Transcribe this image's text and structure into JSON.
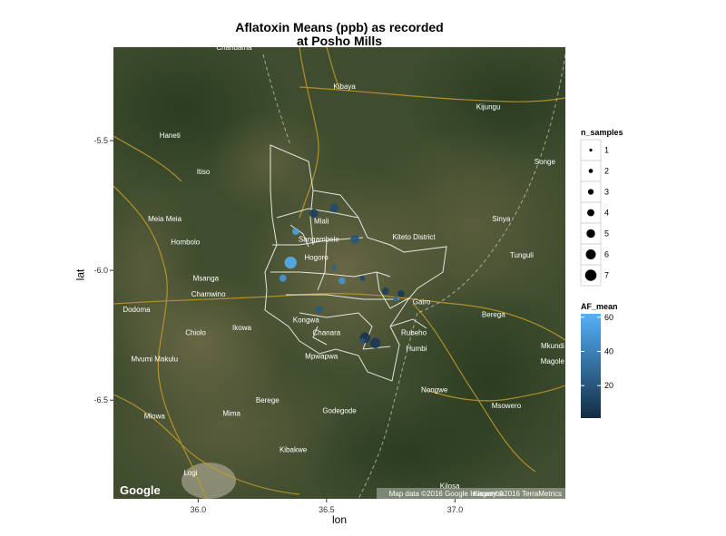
{
  "title_line1": "Aflatoxin Means (ppb) as recorded",
  "title_line2": "at Posho Mills",
  "xlabel": "lon",
  "ylabel": "lat",
  "x_ticks": [
    "36.0",
    "36.5",
    "37.0"
  ],
  "y_ticks": [
    "-5.5",
    "-6.0",
    "-6.5"
  ],
  "map_labels": [
    {
      "text": "Chandama",
      "lon": 36.14,
      "lat": -5.15
    },
    {
      "text": "Kibaya",
      "lon": 36.57,
      "lat": -5.3
    },
    {
      "text": "Kijungu",
      "lon": 37.13,
      "lat": -5.38
    },
    {
      "text": "Haneti",
      "lon": 35.89,
      "lat": -5.49
    },
    {
      "text": "Songe",
      "lon": 37.35,
      "lat": -5.59
    },
    {
      "text": "Itiso",
      "lon": 36.02,
      "lat": -5.63
    },
    {
      "text": "Meia Meia",
      "lon": 35.87,
      "lat": -5.81
    },
    {
      "text": "Sinya",
      "lon": 37.18,
      "lat": -5.81
    },
    {
      "text": "Mlali",
      "lon": 36.48,
      "lat": -5.82
    },
    {
      "text": "Kiteto District",
      "lon": 36.84,
      "lat": -5.88
    },
    {
      "text": "Hombolo",
      "lon": 35.95,
      "lat": -5.9
    },
    {
      "text": "Sangambele",
      "lon": 36.47,
      "lat": -5.89
    },
    {
      "text": "Tunguli",
      "lon": 37.26,
      "lat": -5.95
    },
    {
      "text": "Hogoro",
      "lon": 36.46,
      "lat": -5.96
    },
    {
      "text": "Msanga",
      "lon": 36.03,
      "lat": -6.04
    },
    {
      "text": "Chamwino",
      "lon": 36.04,
      "lat": -6.1
    },
    {
      "text": "Dodoma",
      "lon": 35.76,
      "lat": -6.16
    },
    {
      "text": "Gairo",
      "lon": 36.87,
      "lat": -6.13
    },
    {
      "text": "Berega",
      "lon": 37.15,
      "lat": -6.18
    },
    {
      "text": "Kongwa",
      "lon": 36.42,
      "lat": -6.2
    },
    {
      "text": "Ikowa",
      "lon": 36.17,
      "lat": -6.23
    },
    {
      "text": "Chiolo",
      "lon": 35.99,
      "lat": -6.25
    },
    {
      "text": "Chanara",
      "lon": 36.5,
      "lat": -6.25
    },
    {
      "text": "Rubeho",
      "lon": 36.84,
      "lat": -6.25
    },
    {
      "text": "Mvumi Makulu",
      "lon": 35.83,
      "lat": -6.35
    },
    {
      "text": "Mpwapwa",
      "lon": 36.48,
      "lat": -6.34
    },
    {
      "text": "Humbi",
      "lon": 36.85,
      "lat": -6.31
    },
    {
      "text": "Mkundi",
      "lon": 37.38,
      "lat": -6.3
    },
    {
      "text": "Magole",
      "lon": 37.38,
      "lat": -6.36
    },
    {
      "text": "Nongwe",
      "lon": 36.92,
      "lat": -6.47
    },
    {
      "text": "Berege",
      "lon": 36.27,
      "lat": -6.51
    },
    {
      "text": "Godegode",
      "lon": 36.55,
      "lat": -6.55
    },
    {
      "text": "Msowero",
      "lon": 37.2,
      "lat": -6.53
    },
    {
      "text": "Mima",
      "lon": 36.13,
      "lat": -6.56
    },
    {
      "text": "Mlowa",
      "lon": 35.83,
      "lat": -6.57
    },
    {
      "text": "Kibakwe",
      "lon": 36.37,
      "lat": -6.7
    },
    {
      "text": "Logi",
      "lon": 35.97,
      "lat": -6.79
    },
    {
      "text": "Kilosa",
      "lon": 36.98,
      "lat": -6.84
    },
    {
      "text": "Kimamba",
      "lon": 37.13,
      "lat": -6.87
    }
  ],
  "google_logo": "Google",
  "attribution": "Map data ©2016 Google  Imagery ©2016 TerraMetrics",
  "legend_size": {
    "title": "n_samples",
    "labels": [
      "1",
      "2",
      "3",
      "4",
      "5",
      "6",
      "7"
    ]
  },
  "legend_color": {
    "title": "AF_mean",
    "labels": [
      "60",
      "40",
      "20"
    ],
    "low_color": "#132B43",
    "high_color": "#56B1F7"
  },
  "chart_data": {
    "type": "scatter",
    "xlabel": "lon",
    "ylabel": "lat",
    "xlim": [
      35.67,
      37.43
    ],
    "ylim": [
      -6.88,
      -5.14
    ],
    "x_ticks": [
      36.0,
      36.5,
      37.0
    ],
    "y_ticks": [
      -5.5,
      -6.0,
      -6.5
    ],
    "size_variable": "n_samples",
    "color_variable": "AF_mean",
    "color_range": [
      1,
      62
    ],
    "points": [
      {
        "lon": 36.45,
        "lat": -5.78,
        "n_samples": 4,
        "AF_mean": 10
      },
      {
        "lon": 36.53,
        "lat": -5.76,
        "n_samples": 4,
        "AF_mean": 15
      },
      {
        "lon": 36.38,
        "lat": -5.85,
        "n_samples": 3,
        "AF_mean": 55
      },
      {
        "lon": 36.61,
        "lat": -5.88,
        "n_samples": 4,
        "AF_mean": 20
      },
      {
        "lon": 36.36,
        "lat": -5.97,
        "n_samples": 6,
        "AF_mean": 60
      },
      {
        "lon": 36.53,
        "lat": -5.99,
        "n_samples": 2,
        "AF_mean": 25
      },
      {
        "lon": 36.64,
        "lat": -6.03,
        "n_samples": 2,
        "AF_mean": 15
      },
      {
        "lon": 36.33,
        "lat": -6.03,
        "n_samples": 3,
        "AF_mean": 50
      },
      {
        "lon": 36.56,
        "lat": -6.04,
        "n_samples": 3,
        "AF_mean": 48
      },
      {
        "lon": 36.73,
        "lat": -6.08,
        "n_samples": 3,
        "AF_mean": 10
      },
      {
        "lon": 36.79,
        "lat": -6.09,
        "n_samples": 3,
        "AF_mean": 8
      },
      {
        "lon": 36.77,
        "lat": -6.11,
        "n_samples": 2,
        "AF_mean": 30
      },
      {
        "lon": 36.47,
        "lat": -6.15,
        "n_samples": 3,
        "AF_mean": 22
      },
      {
        "lon": 36.65,
        "lat": -6.26,
        "n_samples": 5,
        "AF_mean": 5
      },
      {
        "lon": 36.69,
        "lat": -6.28,
        "n_samples": 5,
        "AF_mean": 8
      },
      {
        "lon": 36.64,
        "lat": -6.27,
        "n_samples": 2,
        "AF_mean": 20
      }
    ]
  }
}
